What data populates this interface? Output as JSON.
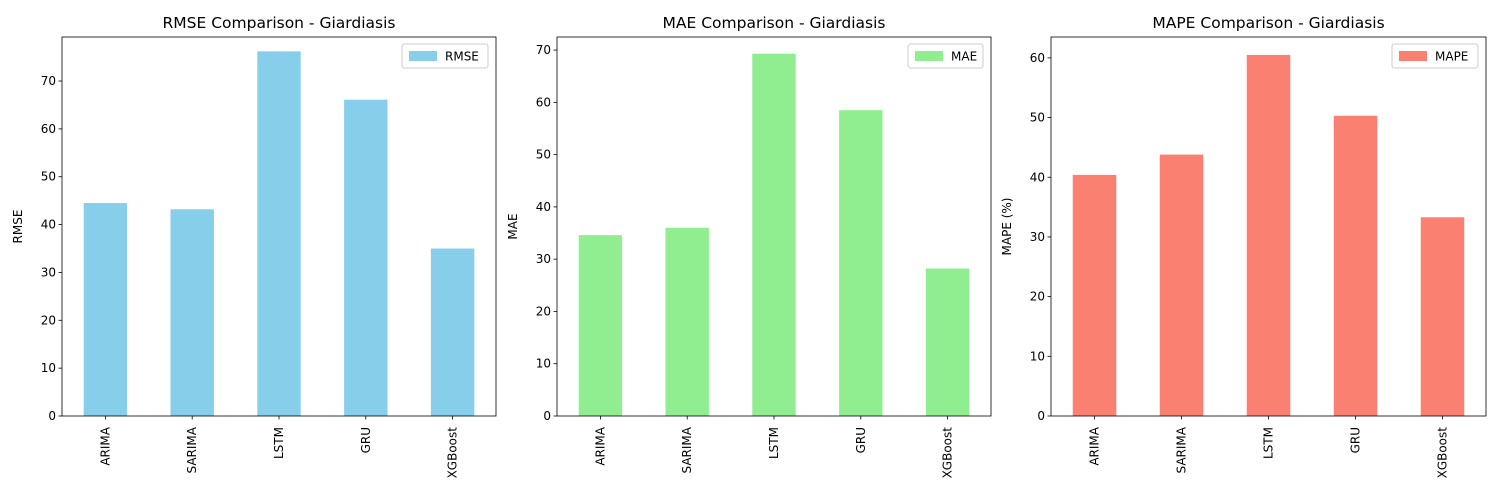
{
  "chart_data": [
    {
      "type": "bar",
      "title": "RMSE Comparison - Giardiasis",
      "xlabel": "",
      "ylabel": "RMSE",
      "categories": [
        "ARIMA",
        "SARIMA",
        "LSTM",
        "GRU",
        "XGBoost"
      ],
      "series": [
        {
          "name": "RMSE",
          "values": [
            44.5,
            43.2,
            76.2,
            66.1,
            35.0
          ],
          "color": "#87ceeb"
        }
      ],
      "ylim": [
        0,
        79.2
      ],
      "yticks": [
        0,
        10,
        20,
        30,
        40,
        50,
        60,
        70
      ],
      "grid": false,
      "legend": "top-right"
    },
    {
      "type": "bar",
      "title": "MAE Comparison - Giardiasis",
      "xlabel": "",
      "ylabel": "MAE",
      "categories": [
        "ARIMA",
        "SARIMA",
        "LSTM",
        "GRU",
        "XGBoost"
      ],
      "series": [
        {
          "name": "MAE",
          "values": [
            34.6,
            36.0,
            69.3,
            58.5,
            28.2
          ],
          "color": "#90ee90"
        }
      ],
      "ylim": [
        0,
        72.5
      ],
      "yticks": [
        0,
        10,
        20,
        30,
        40,
        50,
        60,
        70
      ],
      "grid": false,
      "legend": "top-right"
    },
    {
      "type": "bar",
      "title": "MAPE Comparison - Giardiasis",
      "xlabel": "",
      "ylabel": "MAPE (%)",
      "categories": [
        "ARIMA",
        "SARIMA",
        "LSTM",
        "GRU",
        "XGBoost"
      ],
      "series": [
        {
          "name": "MAPE",
          "values": [
            40.4,
            43.8,
            60.5,
            50.3,
            33.3
          ],
          "color": "#fa8072"
        }
      ],
      "ylim": [
        0,
        63.5
      ],
      "yticks": [
        0,
        10,
        20,
        30,
        40,
        50,
        60
      ],
      "grid": false,
      "legend": "top-right"
    }
  ]
}
